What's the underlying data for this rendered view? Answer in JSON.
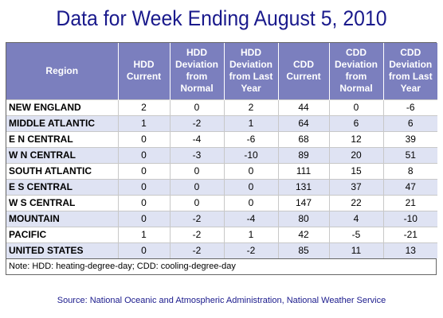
{
  "chart_data": {
    "type": "table",
    "title": "Data for Week Ending August 5, 2010",
    "columns": [
      "Region",
      "HDD Current",
      "HDD Deviation from Normal",
      "HDD Deviation from Last Year",
      "CDD Current",
      "CDD Deviation from Normal",
      "CDD Deviation from Last Year"
    ],
    "rows": [
      [
        "NEW ENGLAND",
        "2",
        "0",
        "2",
        "44",
        "0",
        "-6"
      ],
      [
        "MIDDLE ATLANTIC",
        "1",
        "-2",
        "1",
        "64",
        "6",
        "6"
      ],
      [
        "E N CENTRAL",
        "0",
        "-4",
        "-6",
        "68",
        "12",
        "39"
      ],
      [
        "W N CENTRAL",
        "0",
        "-3",
        "-10",
        "89",
        "20",
        "51"
      ],
      [
        "SOUTH ATLANTIC",
        "0",
        "0",
        "0",
        "111",
        "15",
        "8"
      ],
      [
        "E S CENTRAL",
        "0",
        "0",
        "0",
        "131",
        "37",
        "47"
      ],
      [
        "W S CENTRAL",
        "0",
        "0",
        "0",
        "147",
        "22",
        "21"
      ],
      [
        "MOUNTAIN",
        "0",
        "-2",
        "-4",
        "80",
        "4",
        "-10"
      ],
      [
        "PACIFIC",
        "1",
        "-2",
        "1",
        "42",
        "-5",
        "-21"
      ],
      [
        "UNITED STATES",
        "0",
        "-2",
        "-2",
        "85",
        "11",
        "13"
      ]
    ],
    "note": "Note: HDD: heating-degree-day; CDD: cooling-degree-day",
    "source": "Source:  National Oceanic and Atmospheric Administration, National Weather Service"
  },
  "colors": {
    "title": "#1a1a8c",
    "header_bg": "#7b7fbe",
    "header_text": "#ffffff",
    "row_alt_bg": "#dfe3f3",
    "source_text": "#1a1a8c"
  }
}
